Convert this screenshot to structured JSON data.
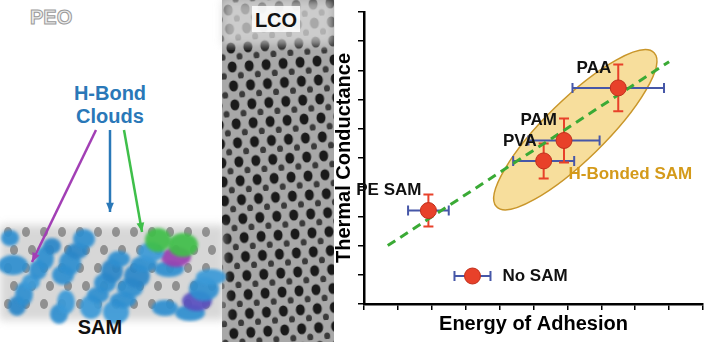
{
  "figure_panel": {
    "top_label": "PEO",
    "crystal_label": "LCO",
    "callout": "H-Bond Clouds",
    "bottom_label": "SAM"
  },
  "chart_data": {
    "type": "scatter",
    "x_label": "Energy of Adhesion",
    "y_label": "Thermal Conductance",
    "xlim": [
      0,
      10
    ],
    "ylim": [
      0,
      10
    ],
    "xticks": [
      0,
      1,
      2,
      3,
      4,
      5,
      6,
      7,
      8,
      9,
      10
    ],
    "yticks": [
      0,
      1,
      2,
      3,
      4,
      5,
      6,
      7,
      8,
      9,
      10
    ],
    "tick_labels": false,
    "grid": false,
    "legend": "bottom",
    "series": [
      {
        "name": "No SAM",
        "color": "#e8412a",
        "marker": "circle",
        "labels": [
          "PE SAM",
          "PVA",
          "PAM",
          "PAA"
        ],
        "x": [
          1.9,
          5.3,
          5.9,
          7.5
        ],
        "values": [
          3.2,
          4.9,
          5.6,
          7.4
        ],
        "x_error": [
          0.6,
          0.9,
          1.05,
          1.35
        ],
        "y_error": [
          0.55,
          0.6,
          0.75,
          0.8
        ]
      }
    ],
    "fit": {
      "x": [
        0.7,
        9.0
      ],
      "values": [
        2.0,
        8.3
      ],
      "color": "#3aaa35",
      "line_style": "dashed"
    },
    "groups": [
      {
        "label": "H-Bonded SAM",
        "members": [
          "PVA",
          "PAM",
          "PAA"
        ],
        "color": "#f0c24a"
      }
    ]
  }
}
